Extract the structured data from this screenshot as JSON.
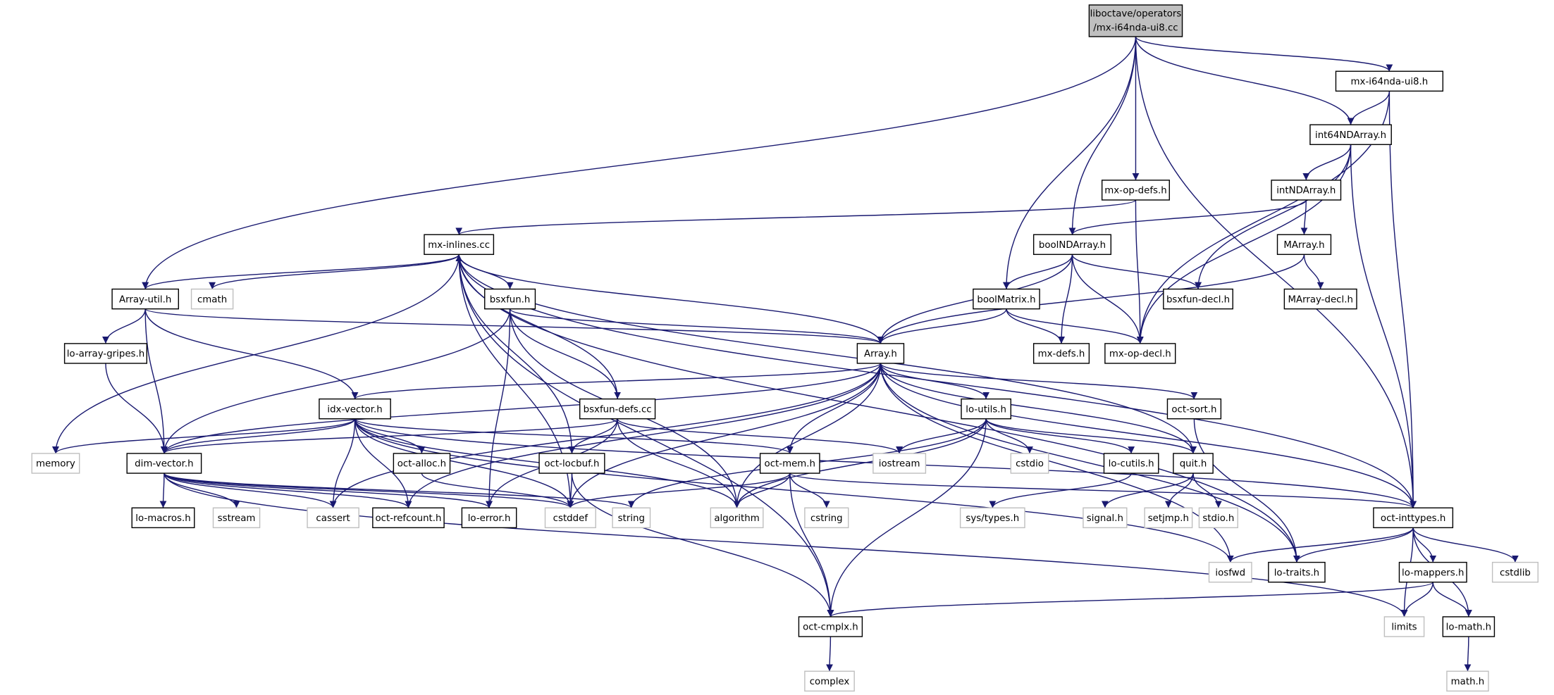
{
  "root": {
    "lines": [
      "liboctave/operators",
      "/mx-i64nda-ui8.cc"
    ]
  },
  "nodes": [
    {
      "label": "mx-i64nda-ui8.h"
    },
    {
      "label": "int64NDArray.h"
    },
    {
      "label": "mx-op-defs.h"
    },
    {
      "label": "intNDArray.h"
    },
    {
      "label": "mx-inlines.cc"
    },
    {
      "label": "boolNDArray.h"
    },
    {
      "label": "MArray.h"
    },
    {
      "label": "Array-util.h"
    },
    {
      "label": "cmath"
    },
    {
      "label": "bsxfun.h"
    },
    {
      "label": "boolMatrix.h"
    },
    {
      "label": "bsxfun-decl.h"
    },
    {
      "label": "MArray-decl.h"
    },
    {
      "label": "lo-array-gripes.h"
    },
    {
      "label": "Array.h"
    },
    {
      "label": "mx-defs.h"
    },
    {
      "label": "mx-op-decl.h"
    },
    {
      "label": "idx-vector.h"
    },
    {
      "label": "bsxfun-defs.cc"
    },
    {
      "label": "lo-utils.h"
    },
    {
      "label": "oct-sort.h"
    },
    {
      "label": "memory"
    },
    {
      "label": "dim-vector.h"
    },
    {
      "label": "oct-alloc.h"
    },
    {
      "label": "oct-locbuf.h"
    },
    {
      "label": "oct-mem.h"
    },
    {
      "label": "iostream"
    },
    {
      "label": "cstdio"
    },
    {
      "label": "lo-cutils.h"
    },
    {
      "label": "quit.h"
    },
    {
      "label": "lo-macros.h"
    },
    {
      "label": "sstream"
    },
    {
      "label": "cassert"
    },
    {
      "label": "oct-refcount.h"
    },
    {
      "label": "lo-error.h"
    },
    {
      "label": "cstddef"
    },
    {
      "label": "string"
    },
    {
      "label": "algorithm"
    },
    {
      "label": "cstring"
    },
    {
      "label": "sys/types.h"
    },
    {
      "label": "signal.h"
    },
    {
      "label": "setjmp.h"
    },
    {
      "label": "stdio.h"
    },
    {
      "label": "oct-inttypes.h"
    },
    {
      "label": "iosfwd"
    },
    {
      "label": "lo-traits.h"
    },
    {
      "label": "lo-mappers.h"
    },
    {
      "label": "cstdlib"
    },
    {
      "label": "oct-cmplx.h"
    },
    {
      "label": "limits"
    },
    {
      "label": "lo-math.h"
    },
    {
      "label": "complex"
    },
    {
      "label": "math.h"
    }
  ]
}
